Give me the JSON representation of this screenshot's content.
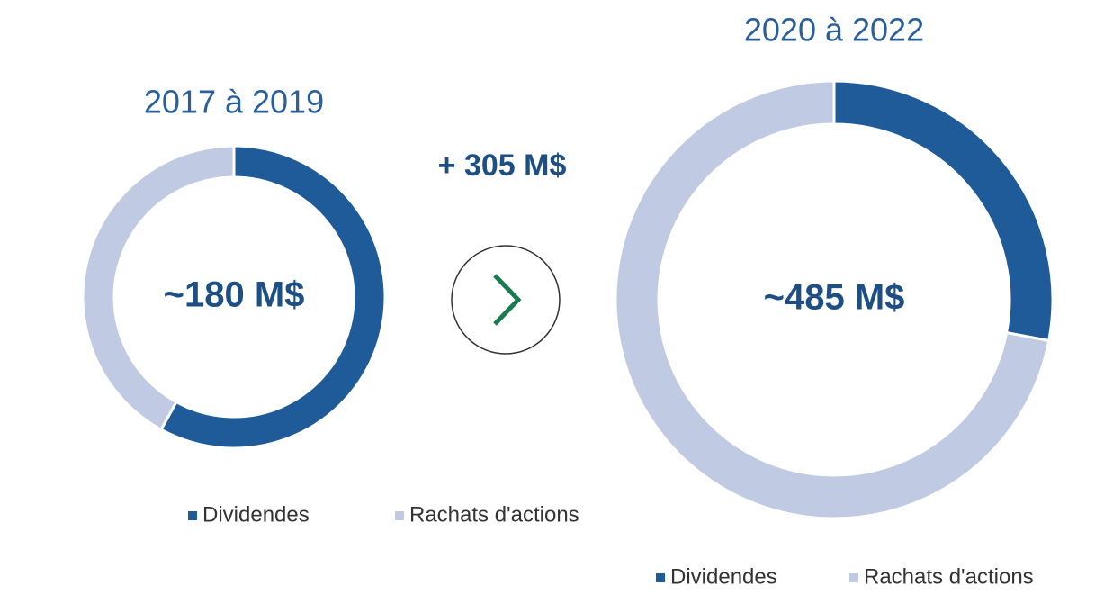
{
  "annotation": "+ 305 M$",
  "chart_data": [
    {
      "type": "pie",
      "title": "2017 à 2019",
      "center_label": "~180 M$",
      "categories": [
        "Dividendes",
        "Rachats d'actions"
      ],
      "values": [
        58,
        42
      ],
      "colors": [
        "#1f5b99",
        "#c0cae3"
      ]
    },
    {
      "type": "pie",
      "title": "2020 à 2022",
      "center_label": "~485 M$",
      "categories": [
        "Dividendes",
        "Rachats d'actions"
      ],
      "values": [
        28,
        72
      ],
      "colors": [
        "#1f5b99",
        "#c0cae3"
      ]
    }
  ]
}
